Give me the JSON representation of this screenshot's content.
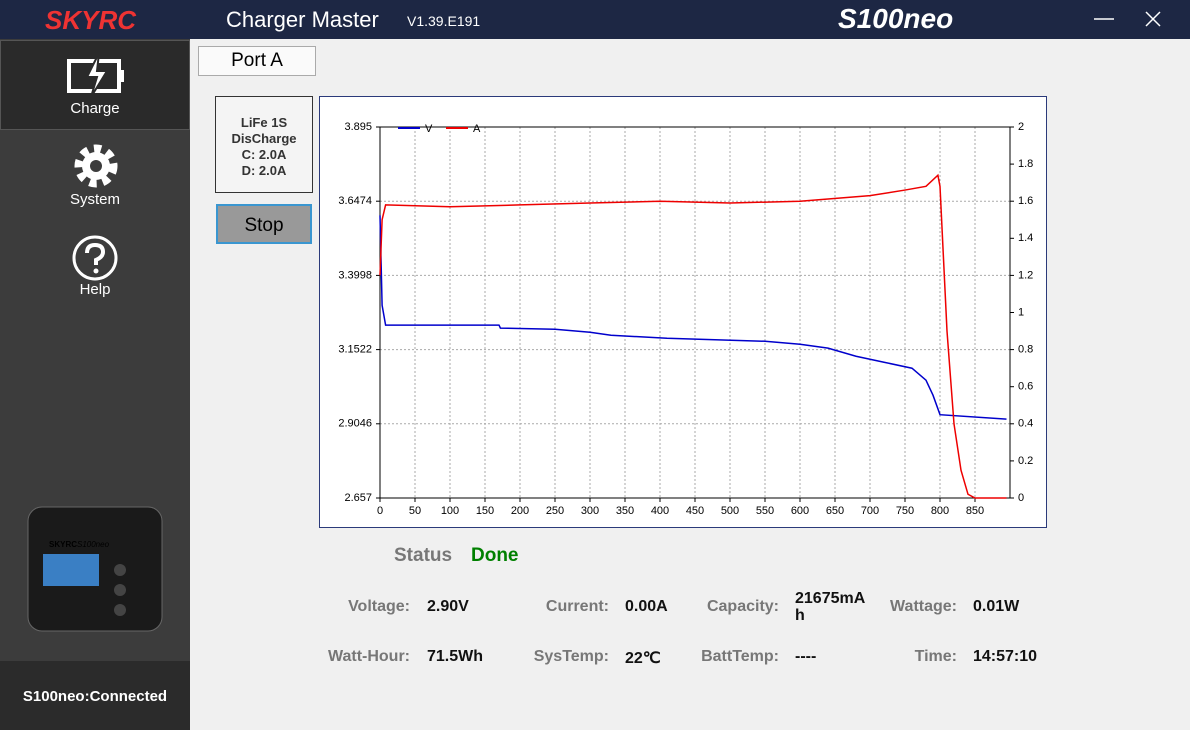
{
  "header": {
    "brand": "SKYRC",
    "app_title": "Charger Master",
    "version": "V1.39.E191",
    "model": "S100neo"
  },
  "sidebar": {
    "items": [
      "Charge",
      "System",
      "Help"
    ],
    "device": {
      "brand": "SKYRC",
      "model": "S100neo"
    },
    "connection": "S100neo:Connected"
  },
  "tab": "Port A",
  "program": {
    "lines": [
      "LiFe 1S",
      "DisCharge",
      "C: 2.0A",
      "D: 2.0A"
    ]
  },
  "button": "Stop",
  "status": {
    "label": "Status",
    "value": "Done"
  },
  "readouts": [
    {
      "label": "Voltage:",
      "value": "2.90V"
    },
    {
      "label": "Current:",
      "value": "0.00A"
    },
    {
      "label": "Capacity:",
      "value": "21675mAh"
    },
    {
      "label": "Wattage:",
      "value": "0.01W"
    },
    {
      "label": "Watt-Hour:",
      "value": "71.5Wh"
    },
    {
      "label": "SysTemp:",
      "value": "22℃"
    },
    {
      "label": "BattTemp:",
      "value": "----"
    },
    {
      "label": "Time:",
      "value": "14:57:10"
    }
  ],
  "chart_data": {
    "type": "line",
    "xlim": [
      0,
      900
    ],
    "xticks": [
      0,
      50,
      100,
      150,
      200,
      250,
      300,
      350,
      400,
      450,
      500,
      550,
      600,
      650,
      700,
      750,
      800,
      850
    ],
    "ylim": [
      2.657,
      3.895
    ],
    "yticks": [
      2.657,
      2.9046,
      3.1522,
      3.3998,
      3.6474,
      3.895
    ],
    "y2lim": [
      0,
      2
    ],
    "y2ticks": [
      0,
      0.2,
      0.4,
      0.6,
      0.8,
      1,
      1.2,
      1.4,
      1.6,
      1.8,
      2
    ],
    "grid": true,
    "legend": "top-left",
    "series": [
      {
        "name": "V",
        "color": "#0000cc",
        "x": [
          0,
          3,
          8,
          170,
          172,
          250,
          300,
          330,
          410,
          550,
          600,
          640,
          680,
          720,
          760,
          780,
          790,
          800,
          895
        ],
        "values": [
          3.6,
          3.3,
          3.234,
          3.234,
          3.224,
          3.22,
          3.21,
          3.2,
          3.19,
          3.18,
          3.17,
          3.157,
          3.13,
          3.11,
          3.09,
          3.05,
          3.0,
          2.935,
          2.92
        ]
      },
      {
        "name": "A",
        "color": "#ee0000",
        "axis": "y2",
        "x": [
          0,
          3,
          8,
          100,
          200,
          300,
          400,
          500,
          600,
          700,
          750,
          780,
          797,
          800,
          810,
          820,
          830,
          840,
          850,
          895
        ],
        "values": [
          1.2,
          1.5,
          1.58,
          1.57,
          1.58,
          1.59,
          1.6,
          1.59,
          1.6,
          1.63,
          1.66,
          1.68,
          1.74,
          1.68,
          0.9,
          0.4,
          0.15,
          0.02,
          0,
          0
        ]
      }
    ]
  }
}
